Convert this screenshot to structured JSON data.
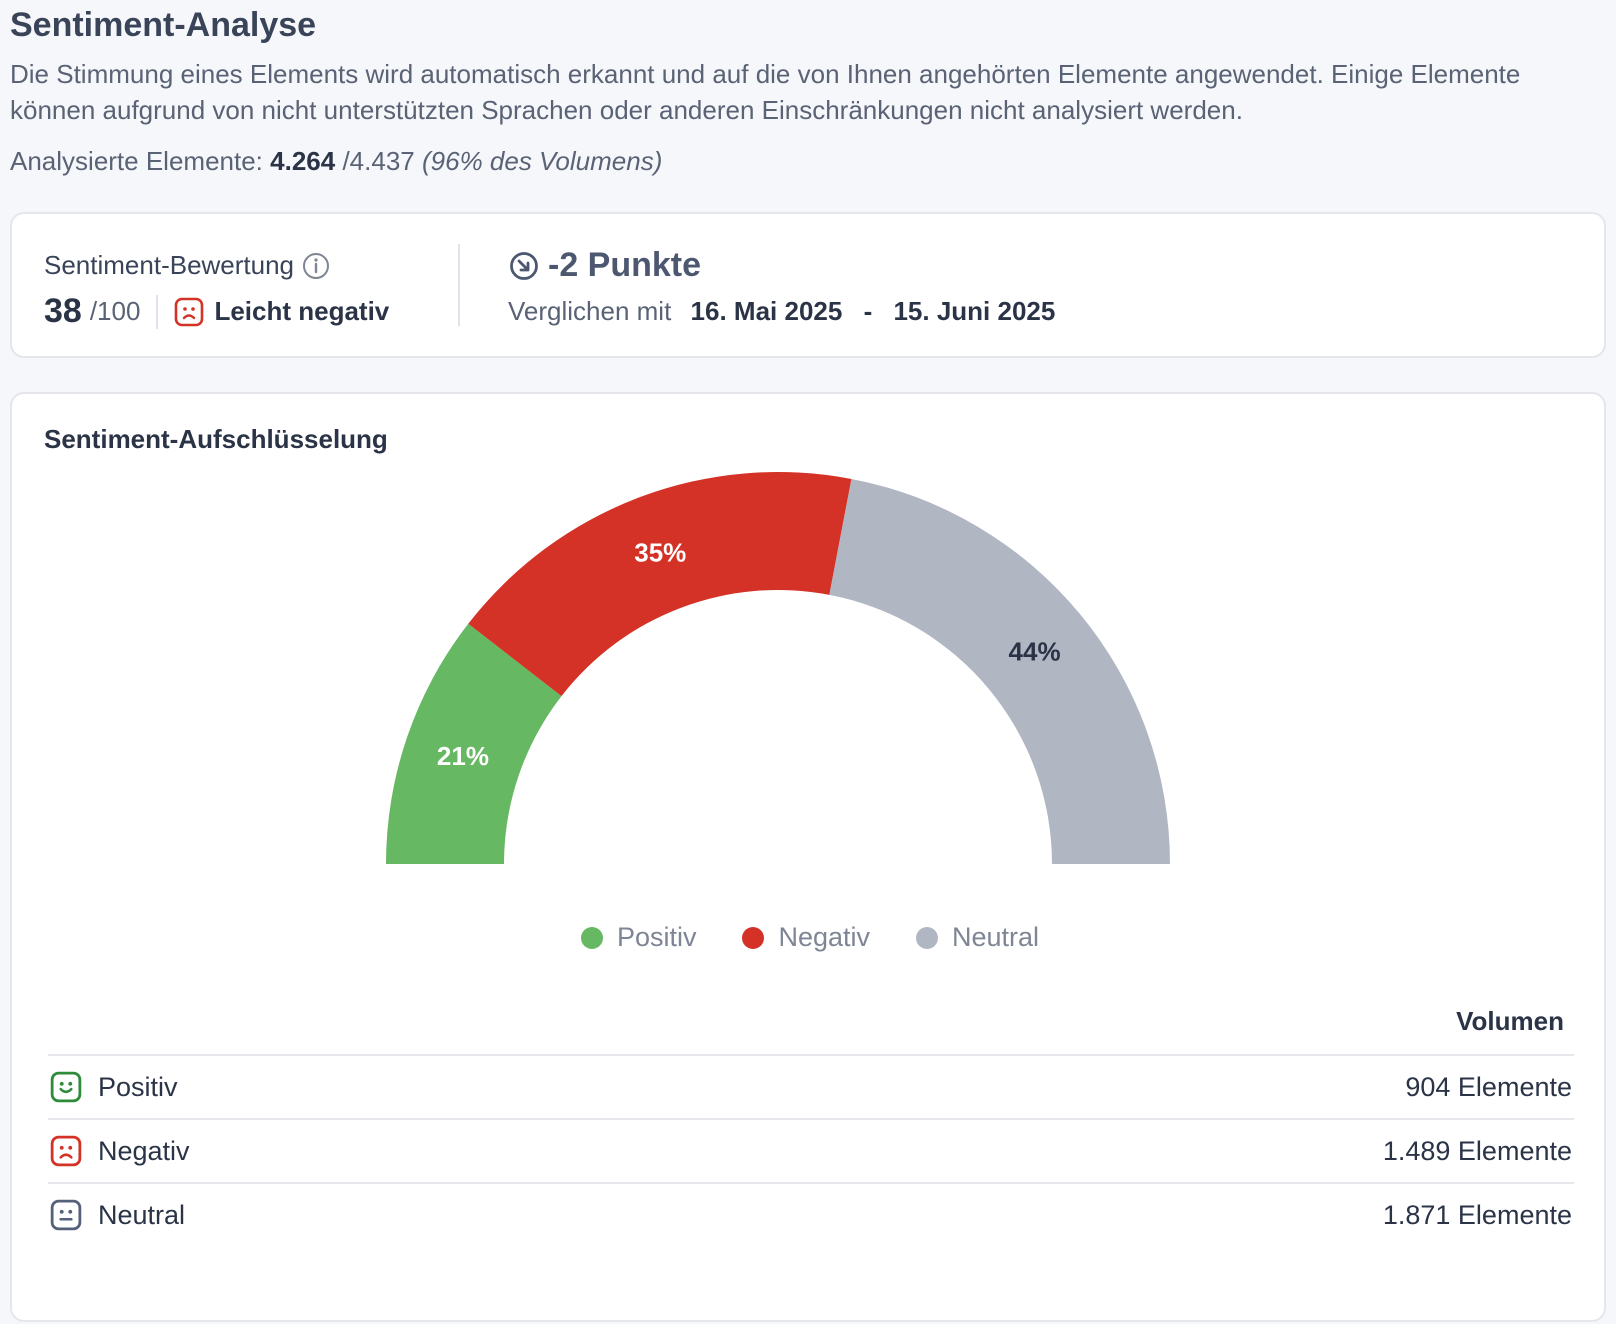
{
  "header": {
    "title": "Sentiment-Analyse",
    "description": "Die Stimmung eines Elements wird automatisch erkannt und auf die von Ihnen angehörten Elemente angewendet. Einige Elemente können aufgrund von nicht unterstützten Sprachen oder anderen Einschränkungen nicht analysiert werden.",
    "analyzed_label": "Analysierte Elemente:",
    "analyzed_count": "4.264",
    "analyzed_total": "/4.437",
    "analyzed_share": "(96% des Volumens)"
  },
  "score": {
    "label": "Sentiment-Bewertung",
    "info_icon": "info-icon",
    "value": "38",
    "max": "/100",
    "rating_icon": "sad-face-icon",
    "rating": "Leicht negativ",
    "trend_icon": "arrow-down-right-circle-icon",
    "trend": "-2 Punkte",
    "compare_label": "Verglichen mit",
    "compare_start": "16. Mai 2025",
    "compare_sep": "-",
    "compare_end": "15. Juni 2025"
  },
  "breakdown": {
    "title": "Sentiment-Aufschlüsselung",
    "volume_header": "Volumen",
    "rows": [
      {
        "label": "Positiv",
        "value": "904 Elemente",
        "icon": "happy-face-icon"
      },
      {
        "label": "Negativ",
        "value": "1.489 Elemente",
        "icon": "sad-face-icon"
      },
      {
        "label": "Neutral",
        "value": "1.871 Elemente",
        "icon": "neutral-face-icon"
      }
    ]
  },
  "colors": {
    "positive": "#67b862",
    "negative": "#d43226",
    "neutral": "#b1b6c3",
    "positive_icon": "#2e8b3a",
    "negative_icon": "#d43226",
    "neutral_icon": "#55607a"
  },
  "chart_data": {
    "type": "pie",
    "subtype": "half-donut",
    "categories": [
      "Positiv",
      "Negativ",
      "Neutral"
    ],
    "values": [
      21,
      35,
      44
    ],
    "labels": [
      "21%",
      "35%",
      "44%"
    ],
    "legend": [
      "Positiv",
      "Negativ",
      "Neutral"
    ],
    "legend_position": "bottom-center"
  }
}
